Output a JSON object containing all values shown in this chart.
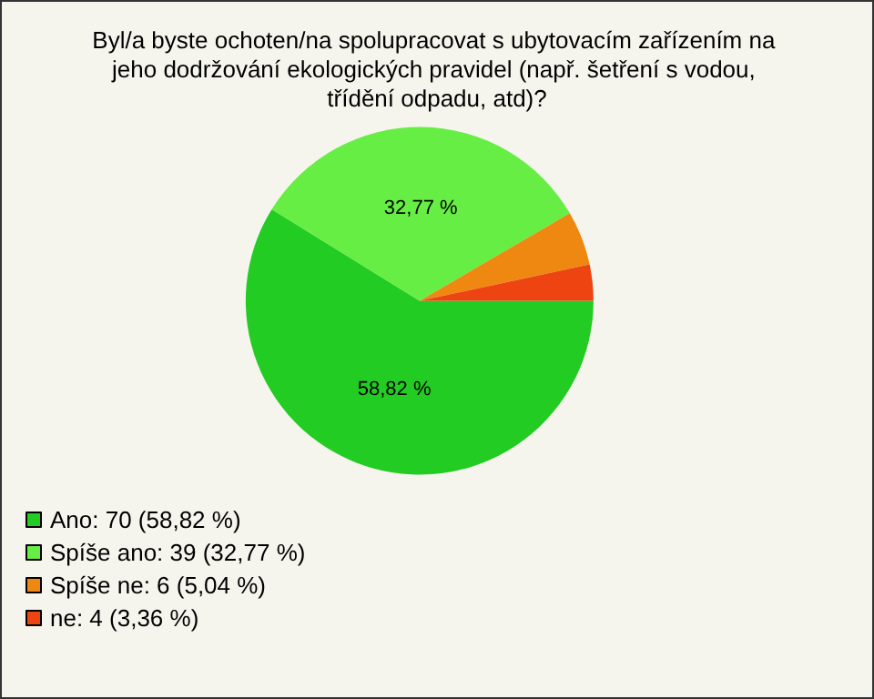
{
  "chart_data": {
    "type": "pie",
    "title": "Byl/a byste ochoten/na spolupracovat s ubytovacím zařízením na jeho dodržování ekologických pravidel (např. šetření s vodou, třídění odpadu, atd)?",
    "categories": [
      "Ano: 70 (58,82 %)",
      "Spíše ano: 39 (32,77 %)",
      "Spíše ne: 6 (5,04 %)",
      "ne: 4 (3,36 %)"
    ],
    "values": [
      58.82,
      32.77,
      5.04,
      3.36
    ],
    "colors": [
      "#22cc22",
      "#66ee44",
      "#ee8811",
      "#ee4411"
    ],
    "value_labels": [
      "58,82 %",
      "32,77 %",
      null,
      null
    ],
    "legend": "bottom left"
  }
}
